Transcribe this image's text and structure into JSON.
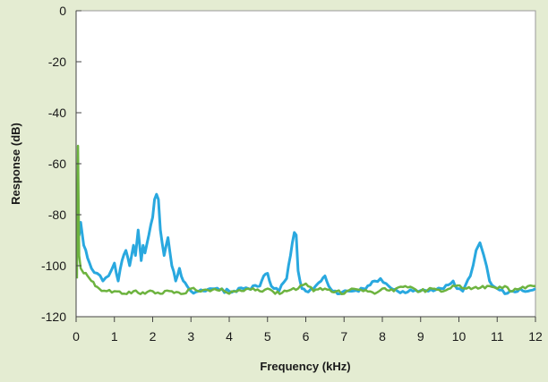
{
  "chart_data": {
    "type": "line",
    "title": "",
    "xlabel": "Frequency (kHz)",
    "ylabel": "Response (dB)",
    "xlim": [
      0,
      12
    ],
    "ylim": [
      -120,
      0
    ],
    "x_ticks": [
      0,
      1,
      2,
      3,
      4,
      5,
      6,
      7,
      8,
      9,
      10,
      11,
      12
    ],
    "y_ticks": [
      0,
      -20,
      -40,
      -60,
      -80,
      -100,
      -120
    ],
    "grid": false,
    "legend": "none",
    "colors": {
      "background": "#e4ecd2",
      "plot_area": "#ffffff",
      "green": "#6db33f",
      "blue": "#29a8df"
    },
    "series": [
      {
        "color": "#29a8df",
        "x": [
          0.05,
          0.08,
          0.12,
          0.2,
          0.3,
          0.4,
          0.55,
          0.7,
          0.85,
          1.0,
          1.1,
          1.2,
          1.3,
          1.4,
          1.5,
          1.55,
          1.62,
          1.7,
          1.75,
          1.8,
          1.9,
          1.95,
          2.0,
          2.05,
          2.1,
          2.15,
          2.2,
          2.3,
          2.4,
          2.5,
          2.6,
          2.7,
          2.8,
          2.9,
          3.0,
          3.2,
          3.5,
          4.0,
          4.5,
          4.8,
          4.9,
          5.0,
          5.1,
          5.3,
          5.5,
          5.6,
          5.7,
          5.75,
          5.8,
          5.9,
          6.0,
          6.2,
          6.4,
          6.5,
          6.6,
          6.7,
          6.9,
          7.2,
          7.5,
          7.8,
          7.95,
          8.1,
          8.4,
          8.8,
          9.2,
          9.6,
          9.85,
          9.95,
          10.1,
          10.3,
          10.45,
          10.55,
          10.65,
          10.8,
          11.0,
          11.2,
          11.4,
          11.6,
          11.8,
          12.0
        ],
        "y": [
          -79,
          -88,
          -83,
          -92,
          -97,
          -101,
          -103,
          -106,
          -104,
          -99,
          -106,
          -98,
          -94,
          -100,
          -92,
          -96,
          -86,
          -98,
          -92,
          -95,
          -88,
          -84,
          -81,
          -74,
          -72,
          -74,
          -86,
          -96,
          -89,
          -100,
          -106,
          -101,
          -106,
          -108,
          -110,
          -110,
          -109,
          -110,
          -109,
          -108,
          -104,
          -103,
          -108,
          -110,
          -105,
          -96,
          -87,
          -88,
          -102,
          -109,
          -110,
          -109,
          -106,
          -104,
          -108,
          -110,
          -111,
          -110,
          -109,
          -106,
          -105,
          -107,
          -110,
          -110,
          -110,
          -109,
          -106,
          -109,
          -110,
          -104,
          -94,
          -91,
          -96,
          -106,
          -109,
          -111,
          -110,
          -109,
          -110,
          -109
        ]
      },
      {
        "color": "#6db33f",
        "x": [
          0.02,
          0.05,
          0.08,
          0.12,
          0.2,
          0.3,
          0.4,
          0.5,
          0.6,
          0.8,
          1.0,
          1.2,
          1.5,
          1.8,
          2.0,
          2.2,
          2.5,
          2.8,
          3.0,
          3.2,
          3.5,
          3.8,
          4.0,
          4.2,
          4.5,
          4.8,
          5.0,
          5.2,
          5.5,
          5.8,
          6.0,
          6.2,
          6.5,
          6.8,
          7.0,
          7.2,
          7.5,
          7.8,
          8.0,
          8.3,
          8.6,
          9.0,
          9.3,
          9.6,
          9.9,
          10.2,
          10.5,
          10.8,
          11.0,
          11.2,
          11.4,
          11.6,
          11.8,
          12.0
        ],
        "y": [
          -105,
          -53,
          -96,
          -101,
          -103,
          -104,
          -106,
          -108,
          -109,
          -110,
          -110,
          -111,
          -110,
          -111,
          -110,
          -111,
          -110,
          -111,
          -109,
          -110,
          -110,
          -109,
          -111,
          -110,
          -109,
          -110,
          -109,
          -111,
          -110,
          -109,
          -107,
          -110,
          -109,
          -110,
          -111,
          -109,
          -110,
          -111,
          -109,
          -110,
          -108,
          -110,
          -109,
          -110,
          -108,
          -109,
          -109,
          -108,
          -109,
          -108,
          -110,
          -109,
          -108,
          -108
        ]
      }
    ]
  }
}
